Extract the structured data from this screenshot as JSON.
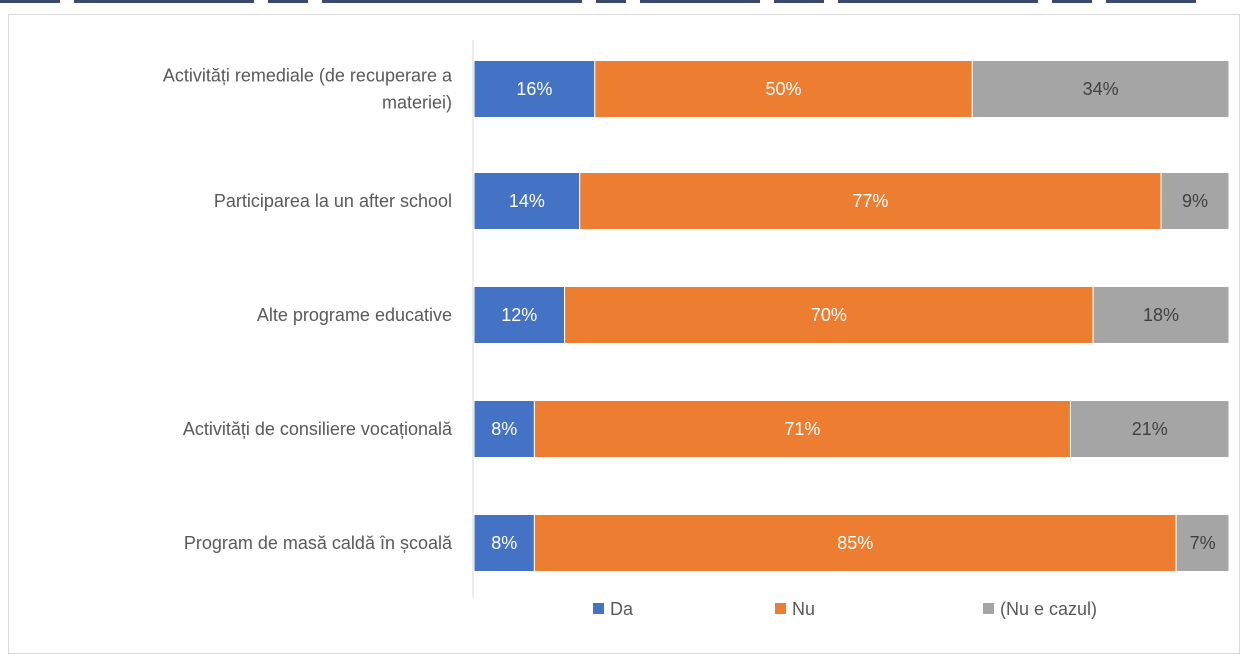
{
  "chart_data": {
    "type": "bar",
    "orientation": "horizontal",
    "stacked": true,
    "percent": true,
    "categories": [
      [
        "Activități remediale (de recuperare a",
        "materiei)"
      ],
      [
        "Participarea la un after school"
      ],
      [
        "Alte programe educative"
      ],
      [
        "Activități de consiliere vocațională"
      ],
      [
        "Program de masă caldă în școală"
      ]
    ],
    "series": [
      {
        "name": "Da",
        "color": "#4472c4",
        "label_color": "#ffffff",
        "values": [
          16,
          14,
          12,
          8,
          8
        ]
      },
      {
        "name": "Nu",
        "color": "#ed7d31",
        "label_color": "#ffffff",
        "values": [
          50,
          77,
          70,
          71,
          85
        ]
      },
      {
        "name": "(Nu e cazul)",
        "color": "#a5a5a5",
        "label_color": "#404040",
        "values": [
          34,
          9,
          18,
          21,
          7
        ]
      }
    ],
    "xlim": [
      0,
      100
    ],
    "legend": "bottom",
    "grid": false
  }
}
